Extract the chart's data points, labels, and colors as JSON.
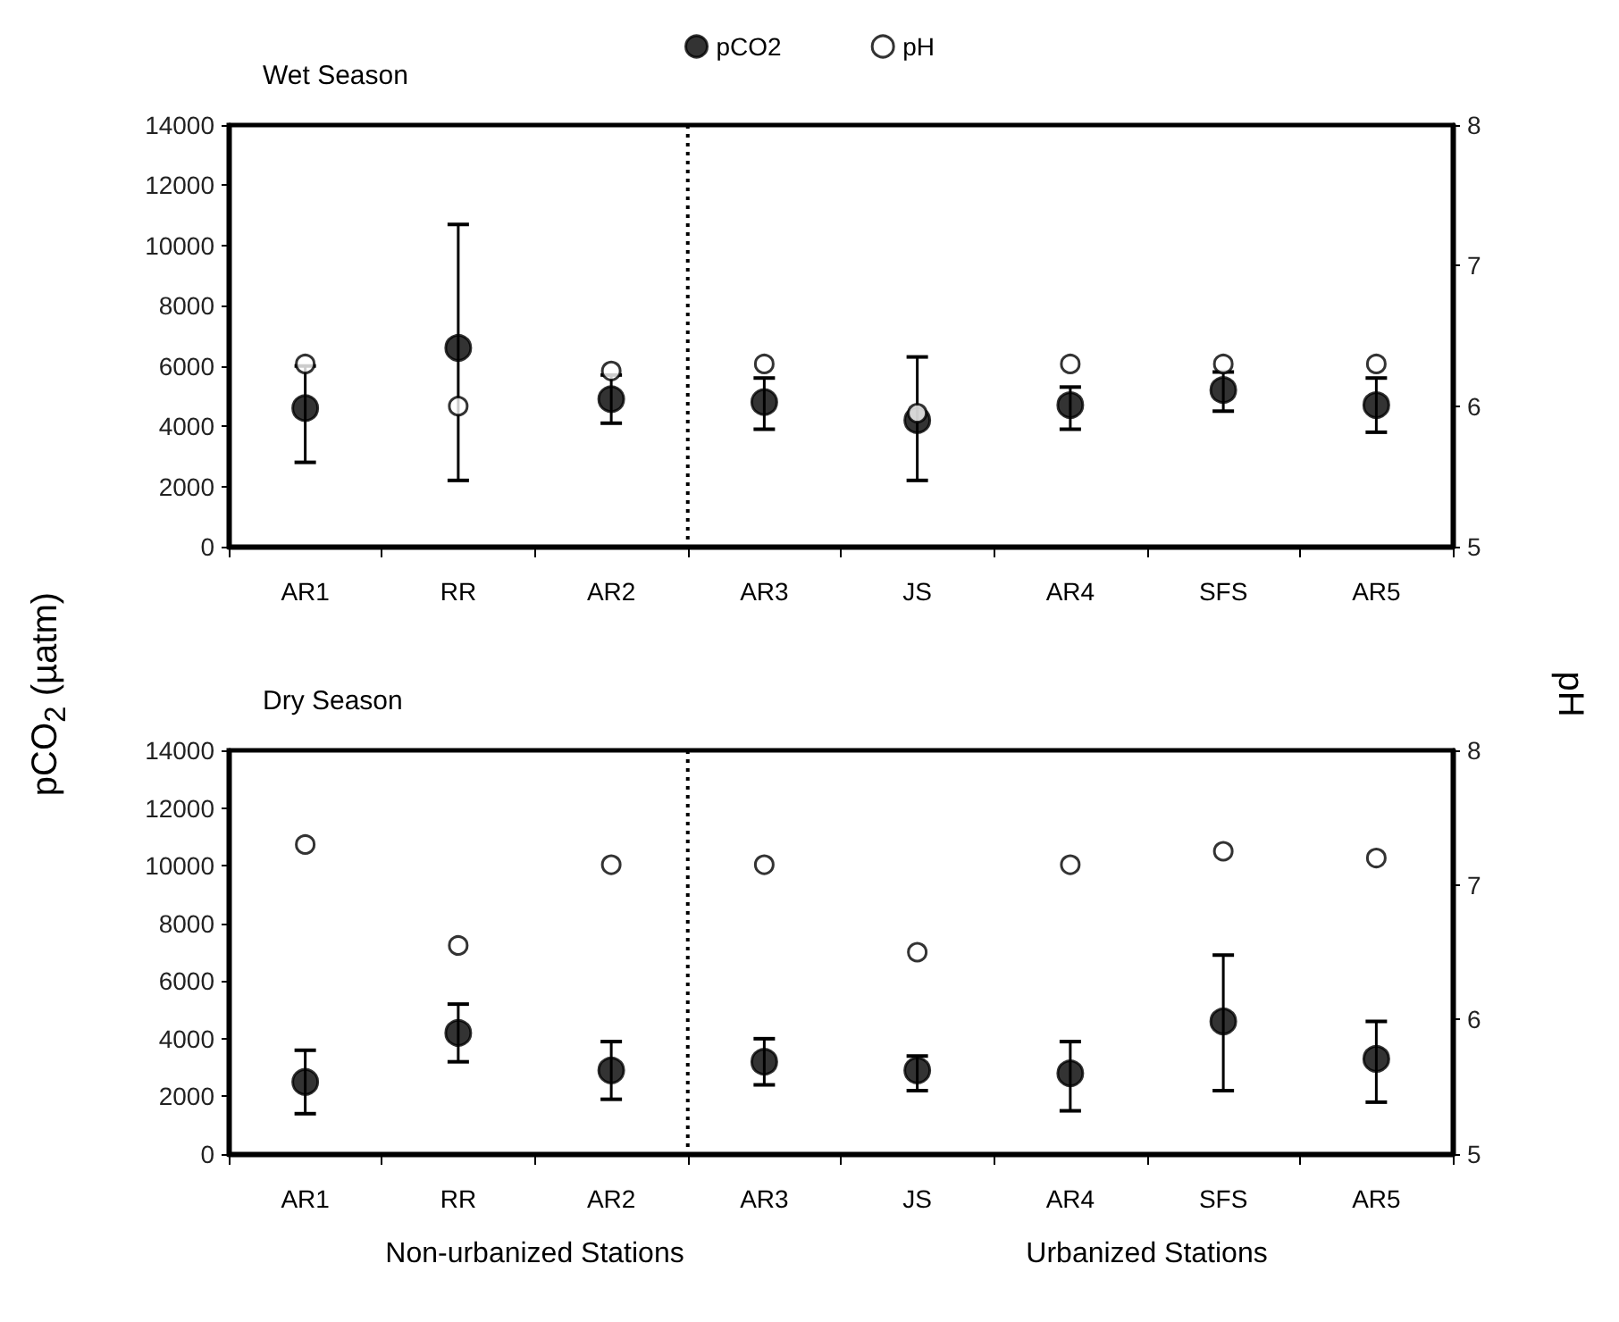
{
  "chart_data": [
    {
      "type": "scatter",
      "title": "Wet Season",
      "ylabel": "pCO$_{2}$ (µatm)",
      "y2label": "pH",
      "marker": "circle",
      "legend": "top",
      "grid": false,
      "categories": [
        "AR1",
        "RR",
        "AR2",
        "AR3",
        "JS",
        "AR4",
        "SFS",
        "AR5"
      ],
      "ylim": [
        0,
        14000
      ],
      "yticks": [
        0,
        2000,
        4000,
        6000,
        8000,
        10000,
        12000,
        14000
      ],
      "y2lim": [
        5,
        8
      ],
      "y2ticks": [
        5,
        6,
        7,
        8
      ],
      "series": [
        {
          "name": "pCO2",
          "color": "#000000",
          "values": [
            4600,
            6600,
            4900,
            4800,
            4200,
            4700,
            5200,
            4700
          ],
          "errors": [
            [
              2800,
              6000
            ],
            [
              2200,
              10700
            ],
            [
              4100,
              5700
            ],
            [
              3900,
              5600
            ],
            [
              2200,
              6300
            ],
            [
              3900,
              5300
            ],
            [
              4500,
              5800
            ],
            [
              3800,
              5600
            ]
          ]
        },
        {
          "name": "pH",
          "color": "#ffffff",
          "axis": "y2",
          "values": [
            6.3,
            6.0,
            6.25,
            6.3,
            5.95,
            6.3,
            6.3,
            6.3
          ]
        }
      ]
    },
    {
      "type": "scatter",
      "title": "Dry Season",
      "marker": "circle",
      "grid": false,
      "categories": [
        "AR1",
        "RR",
        "AR2",
        "AR3",
        "JS",
        "AR4",
        "SFS",
        "AR5"
      ],
      "ylim": [
        0,
        14000
      ],
      "yticks": [
        0,
        2000,
        4000,
        6000,
        8000,
        10000,
        12000,
        14000
      ],
      "y2lim": [
        5,
        8
      ],
      "y2ticks": [
        5,
        6,
        7,
        8
      ],
      "annotations": [
        "Non-urbanized Stations",
        "Urbanized Stations"
      ],
      "series": [
        {
          "color": "#000000",
          "values": [
            2500,
            4200,
            2900,
            3200,
            2900,
            2800,
            4600,
            3300
          ],
          "errors": [
            [
              1400,
              3600
            ],
            [
              3200,
              5200
            ],
            [
              1900,
              3900
            ],
            [
              2400,
              4000
            ],
            [
              2200,
              3400
            ],
            [
              1500,
              3900
            ],
            [
              2200,
              6900
            ],
            [
              1800,
              4600
            ]
          ]
        },
        {
          "color": "#ffffff",
          "axis": "y2",
          "values": [
            7.3,
            6.55,
            7.15,
            7.15,
            6.5,
            7.15,
            7.25,
            7.2
          ]
        }
      ]
    }
  ]
}
